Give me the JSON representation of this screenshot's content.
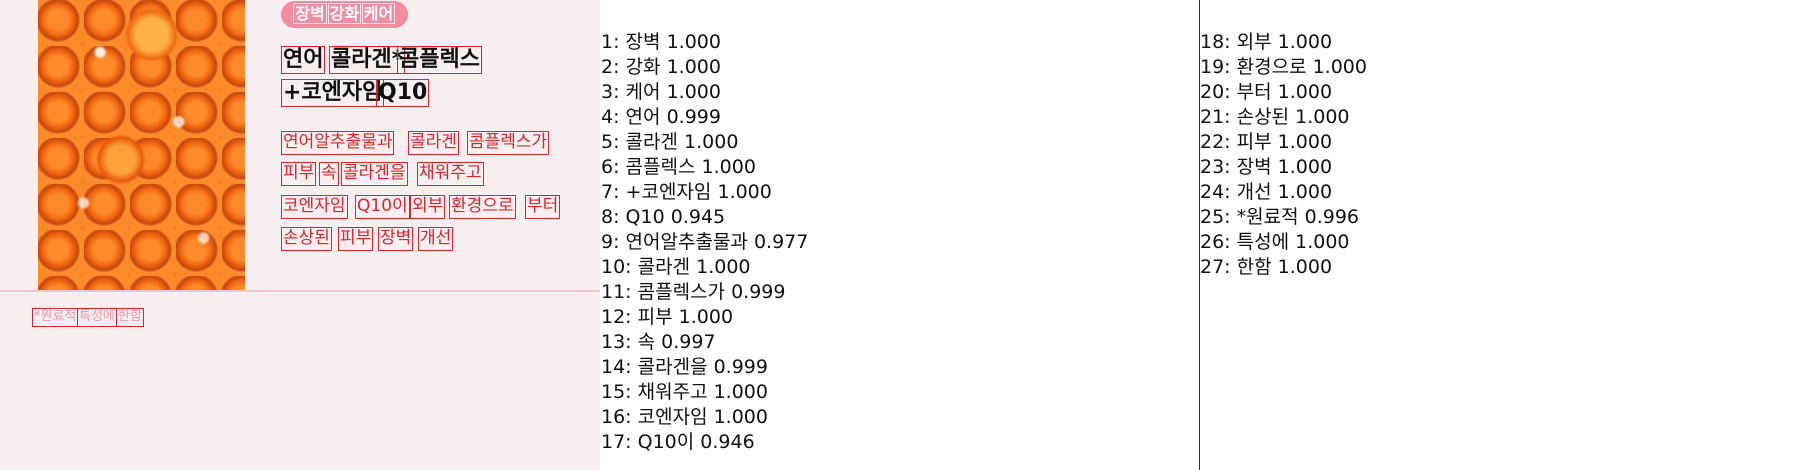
{
  "product": {
    "tags": [
      "장벽",
      "강화",
      "케어"
    ],
    "title_line1": [
      "연어",
      "콜라겐*",
      "콤플렉스"
    ],
    "title_line2": [
      "+코엔자임",
      "Q10"
    ],
    "desc_line1": [
      "연어알추출물과",
      "콜라겐",
      "콤플렉스가"
    ],
    "desc_line2": [
      "피부",
      "속",
      "콜라겐을",
      "채워주고"
    ],
    "desc_line3": [
      "코엔자임",
      "Q10이",
      "외부",
      "환경으로",
      "부터"
    ],
    "desc_line4": [
      "손상된",
      "피부",
      "장벽",
      "개선"
    ],
    "footnote": [
      "*원료적",
      "특성에",
      "한함"
    ]
  },
  "ocr_results": {
    "column1": [
      {
        "idx": "1:",
        "text": "장벽",
        "score": "1.000"
      },
      {
        "idx": "2:",
        "text": "강화",
        "score": "1.000"
      },
      {
        "idx": "3:",
        "text": "케어",
        "score": "1.000"
      },
      {
        "idx": "4:",
        "text": "연어",
        "score": "0.999"
      },
      {
        "idx": "5:",
        "text": "콜라겐",
        "score": "1.000"
      },
      {
        "idx": "6:",
        "text": "콤플렉스",
        "score": "1.000"
      },
      {
        "idx": "7:",
        "text": "+코엔자임",
        "score": "1.000"
      },
      {
        "idx": "8:",
        "text": "Q10",
        "score": "0.945"
      },
      {
        "idx": "9:",
        "text": "연어알추출물과",
        "score": "0.977"
      },
      {
        "idx": "10:",
        "text": "콜라겐",
        "score": "1.000"
      },
      {
        "idx": "11:",
        "text": "콤플렉스가",
        "score": "0.999"
      },
      {
        "idx": "12:",
        "text": "피부",
        "score": "1.000"
      },
      {
        "idx": "13:",
        "text": "속",
        "score": "0.997"
      },
      {
        "idx": "14:",
        "text": "콜라겐을",
        "score": "0.999"
      },
      {
        "idx": "15:",
        "text": "채워주고",
        "score": "1.000"
      },
      {
        "idx": "16:",
        "text": "코엔자임",
        "score": "1.000"
      },
      {
        "idx": "17:",
        "text": "Q10이",
        "score": "0.946"
      }
    ],
    "column2": [
      {
        "idx": "18:",
        "text": "외부",
        "score": "1.000"
      },
      {
        "idx": "19:",
        "text": "환경으로",
        "score": "1.000"
      },
      {
        "idx": "20:",
        "text": "부터",
        "score": "1.000"
      },
      {
        "idx": "21:",
        "text": "손상된",
        "score": "1.000"
      },
      {
        "idx": "22:",
        "text": "피부",
        "score": "1.000"
      },
      {
        "idx": "23:",
        "text": "장벽",
        "score": "1.000"
      },
      {
        "idx": "24:",
        "text": "개선",
        "score": "1.000"
      },
      {
        "idx": "25:",
        "text": "*원료적",
        "score": "0.996"
      },
      {
        "idx": "26:",
        "text": "특성에",
        "score": "1.000"
      },
      {
        "idx": "27:",
        "text": "한함",
        "score": "1.000"
      }
    ]
  },
  "colors": {
    "panel_bg": "#f7eeef",
    "box_outline": "#d9262c",
    "tag_pill": "#f08da0",
    "accent_text": "#d9262c"
  }
}
